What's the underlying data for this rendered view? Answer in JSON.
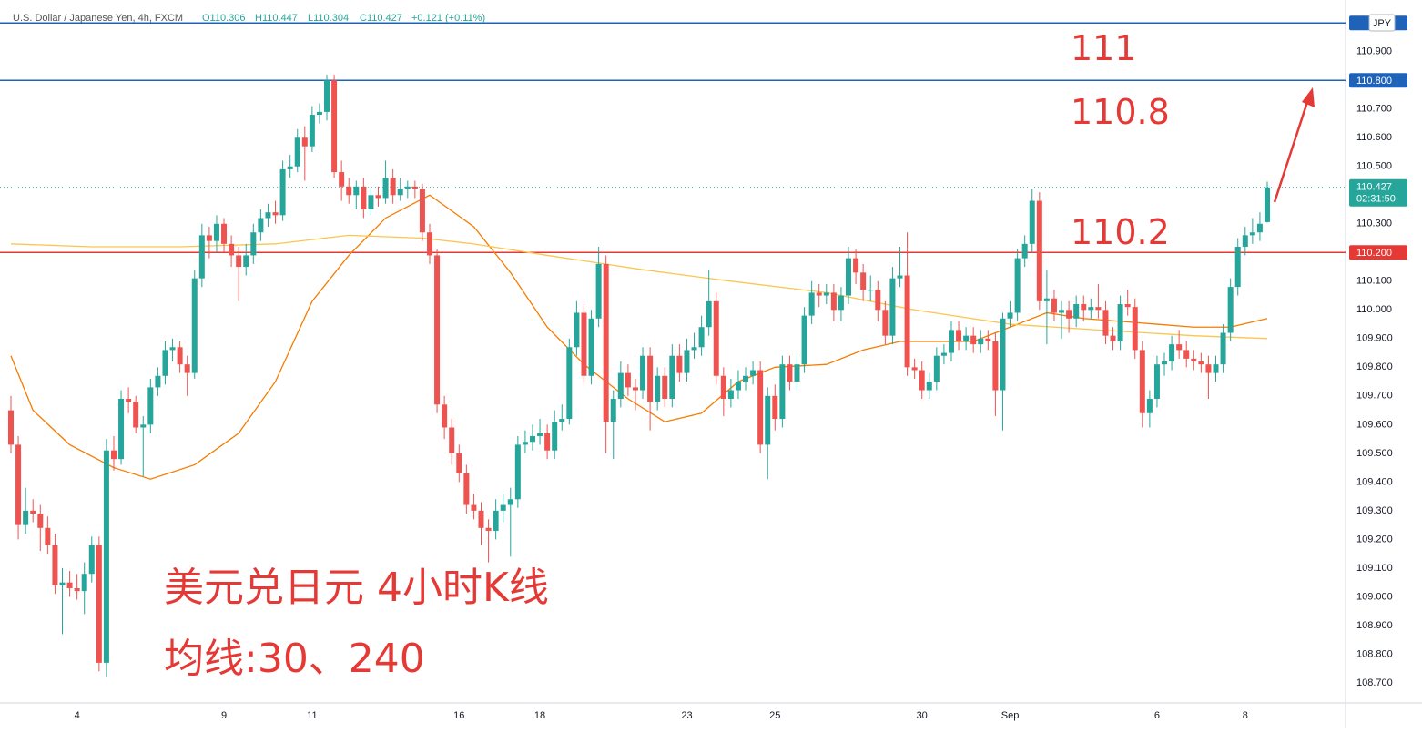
{
  "chart_data": {
    "type": "candlestick",
    "header": {
      "symbol": "U.S. Dollar / Japanese Yen, 4h, FXCM",
      "open": "O110.306",
      "high": "H110.447",
      "low": "L110.304",
      "close": "C110.427",
      "change": "+0.121 (+0.11%)"
    },
    "currency": "JPY",
    "annotations": [
      "111",
      "110.8",
      "110.2",
      "美元兑日元 4小时K线",
      "均线:30、240"
    ],
    "up_color": "#26a69a",
    "down_color": "#ef5350",
    "ylim": [
      108.63,
      111.08
    ],
    "yticks": [
      {
        "value": 110.9,
        "label": "110.900"
      },
      {
        "value": 110.7,
        "label": "110.700"
      },
      {
        "value": 110.6,
        "label": "110.600"
      },
      {
        "value": 110.5,
        "label": "110.500"
      },
      {
        "value": 110.3,
        "label": "110.300"
      },
      {
        "value": 110.1,
        "label": "110.100"
      },
      {
        "value": 110.0,
        "label": "110.000"
      },
      {
        "value": 109.9,
        "label": "109.900"
      },
      {
        "value": 109.8,
        "label": "109.800"
      },
      {
        "value": 109.7,
        "label": "109.700"
      },
      {
        "value": 109.6,
        "label": "109.600"
      },
      {
        "value": 109.5,
        "label": "109.500"
      },
      {
        "value": 109.4,
        "label": "109.400"
      },
      {
        "value": 109.3,
        "label": "109.300"
      },
      {
        "value": 109.2,
        "label": "109.200"
      },
      {
        "value": 109.1,
        "label": "109.100"
      },
      {
        "value": 109.0,
        "label": "109.000"
      },
      {
        "value": 108.9,
        "label": "108.900"
      },
      {
        "value": 108.8,
        "label": "108.800"
      },
      {
        "value": 108.7,
        "label": "108.700"
      }
    ],
    "grid": false,
    "price_lines": [
      {
        "value": 111,
        "color": "#1e63b8"
      },
      {
        "value": 110.8,
        "color": "#1e63b8",
        "label": "110.800"
      },
      {
        "value": 110.2,
        "color": "#e53935",
        "label": "110.200"
      }
    ],
    "last_price": {
      "label": "110.427",
      "countdown": "02:31:50"
    },
    "categories": [
      null,
      null,
      null,
      null,
      null,
      null,
      null,
      null,
      null,
      "4",
      null,
      null,
      null,
      null,
      null,
      null,
      null,
      null,
      null,
      null,
      null,
      null,
      null,
      null,
      null,
      null,
      null,
      null,
      null,
      "9",
      null,
      null,
      null,
      null,
      null,
      null,
      null,
      null,
      null,
      null,
      null,
      "11",
      null,
      null,
      null,
      null,
      null,
      null,
      null,
      null,
      null,
      null,
      null,
      null,
      null,
      null,
      null,
      null,
      null,
      null,
      null,
      "16",
      null,
      null,
      null,
      null,
      null,
      null,
      null,
      null,
      null,
      null,
      "18",
      null,
      null,
      null,
      null,
      null,
      null,
      null,
      null,
      null,
      null,
      null,
      null,
      null,
      null,
      null,
      null,
      null,
      null,
      null,
      "23",
      null,
      null,
      null,
      null,
      null,
      null,
      null,
      null,
      null,
      null,
      null,
      "25",
      null,
      null,
      null,
      null,
      null,
      null,
      null,
      null,
      null,
      null,
      null,
      null,
      null,
      null,
      null,
      null,
      null,
      null,
      null,
      "30",
      null,
      null,
      null,
      null,
      null,
      null,
      null,
      null,
      null,
      null,
      null,
      "Sep",
      null,
      null,
      null,
      null,
      null,
      null,
      null,
      null,
      null,
      null,
      null,
      null,
      null,
      null,
      null,
      null,
      null,
      null,
      null,
      "6",
      null,
      null,
      null,
      null,
      null,
      null,
      null,
      null,
      null,
      null,
      null,
      "8",
      null,
      null,
      null
    ],
    "ohlc": [
      [
        109.65,
        109.7,
        109.5,
        109.53
      ],
      [
        109.53,
        109.56,
        109.2,
        109.25
      ],
      [
        109.25,
        109.38,
        109.22,
        109.3
      ],
      [
        109.3,
        109.34,
        109.26,
        109.29
      ],
      [
        109.29,
        109.32,
        109.16,
        109.24
      ],
      [
        109.24,
        109.28,
        109.15,
        109.18
      ],
      [
        109.18,
        109.22,
        109.01,
        109.04
      ],
      [
        109.04,
        109.1,
        108.87,
        109.05
      ],
      [
        109.05,
        109.09,
        109.0,
        109.03
      ],
      [
        109.03,
        109.08,
        108.99,
        109.02
      ],
      [
        109.02,
        109.12,
        108.94,
        109.08
      ],
      [
        109.08,
        109.21,
        109.05,
        109.18
      ],
      [
        109.18,
        109.21,
        108.74,
        108.77
      ],
      [
        108.77,
        109.55,
        108.72,
        109.51
      ],
      [
        109.51,
        109.56,
        109.44,
        109.48
      ],
      [
        109.48,
        109.72,
        109.46,
        109.69
      ],
      [
        109.69,
        109.73,
        109.64,
        109.68
      ],
      [
        109.68,
        109.7,
        109.57,
        109.59
      ],
      [
        109.59,
        109.63,
        109.42,
        109.6
      ],
      [
        109.6,
        109.76,
        109.57,
        109.73
      ],
      [
        109.73,
        109.8,
        109.7,
        109.77
      ],
      [
        109.77,
        109.89,
        109.74,
        109.86
      ],
      [
        109.86,
        109.9,
        109.82,
        109.87
      ],
      [
        109.87,
        109.89,
        109.78,
        109.81
      ],
      [
        109.81,
        109.84,
        109.7,
        109.78
      ],
      [
        109.78,
        110.14,
        109.76,
        110.11
      ],
      [
        110.11,
        110.3,
        110.08,
        110.26
      ],
      [
        110.26,
        110.29,
        110.18,
        110.24
      ],
      [
        110.24,
        110.33,
        110.2,
        110.3
      ],
      [
        110.3,
        110.32,
        110.2,
        110.23
      ],
      [
        110.23,
        110.26,
        110.15,
        110.19
      ],
      [
        110.19,
        110.22,
        110.03,
        110.15
      ],
      [
        110.15,
        110.23,
        110.12,
        110.19
      ],
      [
        110.19,
        110.3,
        110.16,
        110.27
      ],
      [
        110.27,
        110.35,
        110.24,
        110.32
      ],
      [
        110.32,
        110.37,
        110.29,
        110.34
      ],
      [
        110.34,
        110.38,
        110.3,
        110.33
      ],
      [
        110.33,
        110.52,
        110.31,
        110.49
      ],
      [
        110.49,
        110.54,
        110.46,
        110.5
      ],
      [
        110.5,
        110.63,
        110.48,
        110.6
      ],
      [
        110.6,
        110.64,
        110.45,
        110.57
      ],
      [
        110.57,
        110.71,
        110.55,
        110.68
      ],
      [
        110.68,
        110.72,
        110.65,
        110.69
      ],
      [
        110.69,
        110.82,
        110.66,
        110.8
      ],
      [
        110.8,
        110.82,
        110.46,
        110.48
      ],
      [
        110.48,
        110.52,
        110.38,
        110.43
      ],
      [
        110.43,
        110.46,
        110.37,
        110.4
      ],
      [
        110.4,
        110.45,
        110.35,
        110.43
      ],
      [
        110.43,
        110.46,
        110.32,
        110.35
      ],
      [
        110.35,
        110.42,
        110.33,
        110.4
      ],
      [
        110.4,
        110.43,
        110.36,
        110.39
      ],
      [
        110.39,
        110.52,
        110.37,
        110.46
      ],
      [
        110.46,
        110.49,
        110.37,
        110.4
      ],
      [
        110.4,
        110.46,
        110.38,
        110.42
      ],
      [
        110.42,
        110.45,
        110.39,
        110.43
      ],
      [
        110.43,
        110.45,
        110.39,
        110.42
      ],
      [
        110.42,
        110.44,
        110.24,
        110.27
      ],
      [
        110.27,
        110.3,
        110.16,
        110.19
      ],
      [
        110.19,
        110.21,
        109.64,
        109.67
      ],
      [
        109.67,
        109.7,
        109.55,
        109.59
      ],
      [
        109.59,
        109.62,
        109.46,
        109.5
      ],
      [
        109.5,
        109.53,
        109.4,
        109.43
      ],
      [
        109.43,
        109.46,
        109.29,
        109.32
      ],
      [
        109.32,
        109.36,
        109.27,
        109.3
      ],
      [
        109.3,
        109.33,
        109.18,
        109.24
      ],
      [
        109.24,
        109.27,
        109.12,
        109.23
      ],
      [
        109.23,
        109.34,
        109.2,
        109.3
      ],
      [
        109.3,
        109.36,
        109.26,
        109.32
      ],
      [
        109.32,
        109.38,
        109.14,
        109.34
      ],
      [
        109.34,
        109.56,
        109.31,
        109.53
      ],
      [
        109.53,
        109.58,
        109.5,
        109.54
      ],
      [
        109.54,
        109.6,
        109.51,
        109.56
      ],
      [
        109.56,
        109.62,
        109.53,
        109.57
      ],
      [
        109.57,
        109.6,
        109.48,
        109.51
      ],
      [
        109.51,
        109.65,
        109.48,
        109.61
      ],
      [
        109.61,
        109.67,
        109.58,
        109.62
      ],
      [
        109.62,
        109.9,
        109.6,
        109.87
      ],
      [
        109.87,
        110.03,
        109.84,
        109.99
      ],
      [
        109.99,
        110.02,
        109.74,
        109.77
      ],
      [
        109.77,
        110.0,
        109.74,
        109.97
      ],
      [
        109.97,
        110.22,
        109.94,
        110.16
      ],
      [
        110.16,
        110.19,
        109.5,
        109.61
      ],
      [
        109.61,
        109.72,
        109.48,
        109.69
      ],
      [
        109.69,
        109.82,
        109.66,
        109.78
      ],
      [
        109.78,
        109.81,
        109.7,
        109.73
      ],
      [
        109.73,
        109.76,
        109.65,
        109.72
      ],
      [
        109.72,
        109.87,
        109.69,
        109.84
      ],
      [
        109.84,
        109.87,
        109.58,
        109.68
      ],
      [
        109.68,
        109.8,
        109.65,
        109.77
      ],
      [
        109.77,
        109.8,
        109.66,
        109.69
      ],
      [
        109.69,
        109.88,
        109.66,
        109.84
      ],
      [
        109.84,
        109.88,
        109.75,
        109.78
      ],
      [
        109.78,
        109.9,
        109.75,
        109.86
      ],
      [
        109.86,
        109.92,
        109.83,
        109.87
      ],
      [
        109.87,
        109.98,
        109.84,
        109.94
      ],
      [
        109.94,
        110.14,
        109.91,
        110.03
      ],
      [
        110.03,
        110.06,
        109.74,
        109.77
      ],
      [
        109.77,
        109.8,
        109.63,
        109.69
      ],
      [
        109.69,
        109.76,
        109.66,
        109.72
      ],
      [
        109.72,
        109.79,
        109.69,
        109.75
      ],
      [
        109.75,
        109.8,
        109.72,
        109.77
      ],
      [
        109.77,
        109.82,
        109.74,
        109.79
      ],
      [
        109.79,
        109.82,
        109.5,
        109.53
      ],
      [
        109.53,
        109.73,
        109.41,
        109.7
      ],
      [
        109.7,
        109.74,
        109.58,
        109.62
      ],
      [
        109.62,
        109.84,
        109.59,
        109.81
      ],
      [
        109.81,
        109.84,
        109.72,
        109.75
      ],
      [
        109.75,
        109.84,
        109.72,
        109.81
      ],
      [
        109.81,
        110.01,
        109.78,
        109.98
      ],
      [
        109.98,
        110.1,
        109.95,
        110.06
      ],
      [
        110.06,
        110.09,
        110.01,
        110.05
      ],
      [
        110.05,
        110.09,
        110.02,
        110.06
      ],
      [
        110.06,
        110.09,
        109.96,
        110.0
      ],
      [
        110.0,
        110.08,
        109.96,
        110.05
      ],
      [
        110.05,
        110.22,
        110.02,
        110.18
      ],
      [
        110.18,
        110.21,
        110.09,
        110.13
      ],
      [
        110.13,
        110.16,
        110.03,
        110.07
      ],
      [
        110.07,
        110.12,
        110.03,
        110.07
      ],
      [
        110.07,
        110.1,
        109.96,
        110.0
      ],
      [
        110.0,
        110.03,
        109.88,
        109.91
      ],
      [
        109.91,
        110.15,
        109.88,
        110.11
      ],
      [
        110.11,
        110.22,
        110.08,
        110.12
      ],
      [
        110.12,
        110.27,
        109.77,
        109.8
      ],
      [
        109.8,
        109.83,
        109.76,
        109.79
      ],
      [
        109.79,
        109.82,
        109.69,
        109.72
      ],
      [
        109.72,
        109.78,
        109.69,
        109.75
      ],
      [
        109.75,
        109.87,
        109.72,
        109.84
      ],
      [
        109.84,
        109.88,
        109.81,
        109.85
      ],
      [
        109.85,
        109.96,
        109.82,
        109.93
      ],
      [
        109.93,
        109.96,
        109.86,
        109.89
      ],
      [
        109.89,
        109.94,
        109.86,
        109.91
      ],
      [
        109.91,
        109.94,
        109.85,
        109.88
      ],
      [
        109.88,
        109.93,
        109.85,
        109.9
      ],
      [
        109.9,
        109.93,
        109.86,
        109.89
      ],
      [
        109.89,
        109.92,
        109.63,
        109.72
      ],
      [
        109.72,
        109.99,
        109.58,
        109.97
      ],
      [
        109.97,
        110.03,
        109.94,
        109.99
      ],
      [
        109.99,
        110.21,
        109.96,
        110.18
      ],
      [
        110.18,
        110.26,
        110.15,
        110.23
      ],
      [
        110.23,
        110.42,
        110.2,
        110.38
      ],
      [
        110.38,
        110.41,
        110.0,
        110.03
      ],
      [
        110.03,
        110.14,
        109.88,
        110.04
      ],
      [
        110.04,
        110.07,
        109.96,
        109.99
      ],
      [
        109.99,
        110.03,
        109.9,
        110.0
      ],
      [
        110.0,
        110.03,
        109.92,
        109.97
      ],
      [
        109.97,
        110.05,
        109.94,
        110.02
      ],
      [
        110.02,
        110.05,
        109.96,
        110.0
      ],
      [
        110.0,
        110.04,
        109.97,
        110.01
      ],
      [
        110.01,
        110.09,
        109.97,
        110.0
      ],
      [
        110.0,
        110.03,
        109.88,
        109.91
      ],
      [
        109.91,
        109.94,
        109.86,
        109.89
      ],
      [
        109.89,
        110.05,
        109.86,
        110.02
      ],
      [
        110.02,
        110.07,
        109.98,
        110.01
      ],
      [
        110.01,
        110.04,
        109.83,
        109.86
      ],
      [
        109.86,
        109.89,
        109.59,
        109.64
      ],
      [
        109.64,
        109.72,
        109.59,
        109.69
      ],
      [
        109.69,
        109.84,
        109.66,
        109.81
      ],
      [
        109.81,
        109.85,
        109.77,
        109.82
      ],
      [
        109.82,
        109.91,
        109.79,
        109.88
      ],
      [
        109.88,
        109.93,
        109.83,
        109.86
      ],
      [
        109.86,
        109.89,
        109.8,
        109.83
      ],
      [
        109.83,
        109.86,
        109.79,
        109.82
      ],
      [
        109.82,
        109.85,
        109.78,
        109.81
      ],
      [
        109.81,
        109.84,
        109.69,
        109.78
      ],
      [
        109.78,
        109.84,
        109.75,
        109.81
      ],
      [
        109.81,
        109.95,
        109.78,
        109.92
      ],
      [
        109.92,
        110.11,
        109.89,
        110.08
      ],
      [
        110.08,
        110.25,
        110.05,
        110.22
      ],
      [
        110.22,
        110.29,
        110.19,
        110.26
      ],
      [
        110.26,
        110.32,
        110.23,
        110.27
      ],
      [
        110.27,
        110.34,
        110.24,
        110.3
      ],
      [
        110.306,
        110.447,
        110.304,
        110.427
      ]
    ],
    "ma_lines": [
      {
        "color": "#f57c00",
        "x": [
          0,
          3,
          8,
          14,
          19,
          25,
          31,
          36,
          41,
          46,
          51,
          57,
          63,
          68,
          73,
          78,
          84,
          89,
          94,
          99,
          104,
          111,
          116,
          121,
          126,
          131,
          136,
          141,
          146,
          151,
          156,
          161,
          166,
          171
        ],
        "values": [
          109.84,
          109.65,
          109.53,
          109.45,
          109.41,
          109.46,
          109.57,
          109.75,
          110.03,
          110.19,
          110.32,
          110.4,
          110.29,
          110.13,
          109.94,
          109.81,
          109.69,
          109.61,
          109.64,
          109.75,
          109.8,
          109.81,
          109.86,
          109.89,
          109.89,
          109.89,
          109.94,
          109.99,
          109.97,
          109.96,
          109.95,
          109.94,
          109.94,
          109.97
        ]
      },
      {
        "color": "#f9c74f",
        "x": [
          0,
          11,
          23,
          36,
          46,
          56,
          63,
          73,
          86,
          98,
          111,
          123,
          136,
          148,
          161,
          171
        ],
        "values": [
          110.23,
          110.22,
          110.22,
          110.23,
          110.26,
          110.25,
          110.23,
          110.19,
          110.14,
          110.1,
          110.06,
          110.0,
          109.95,
          109.93,
          109.91,
          109.9
        ]
      }
    ]
  }
}
